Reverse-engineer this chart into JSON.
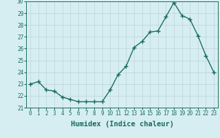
{
  "x": [
    0,
    1,
    2,
    3,
    4,
    5,
    6,
    7,
    8,
    9,
    10,
    11,
    12,
    13,
    14,
    15,
    16,
    17,
    18,
    19,
    20,
    21,
    22,
    23
  ],
  "y": [
    23.0,
    23.2,
    22.5,
    22.4,
    21.9,
    21.7,
    21.5,
    21.5,
    21.5,
    21.5,
    22.5,
    23.8,
    24.5,
    26.1,
    26.6,
    27.4,
    27.5,
    28.7,
    29.9,
    28.8,
    28.5,
    27.1,
    25.4,
    24.0
  ],
  "line_color": "#1a6b5a",
  "bg_color": "#d6eef2",
  "grid_color": "#c0d8dc",
  "xlabel": "Humidex (Indice chaleur)",
  "ylim": [
    21,
    30
  ],
  "xlim": [
    -0.5,
    23.5
  ],
  "yticks": [
    21,
    22,
    23,
    24,
    25,
    26,
    27,
    28,
    29,
    30
  ],
  "xticks": [
    0,
    1,
    2,
    3,
    4,
    5,
    6,
    7,
    8,
    9,
    10,
    11,
    12,
    13,
    14,
    15,
    16,
    17,
    18,
    19,
    20,
    21,
    22,
    23
  ],
  "tick_label_fontsize": 5.5,
  "xlabel_fontsize": 7.5,
  "marker": "+",
  "markersize": 4,
  "markeredgewidth": 1.0,
  "linewidth": 1.0
}
